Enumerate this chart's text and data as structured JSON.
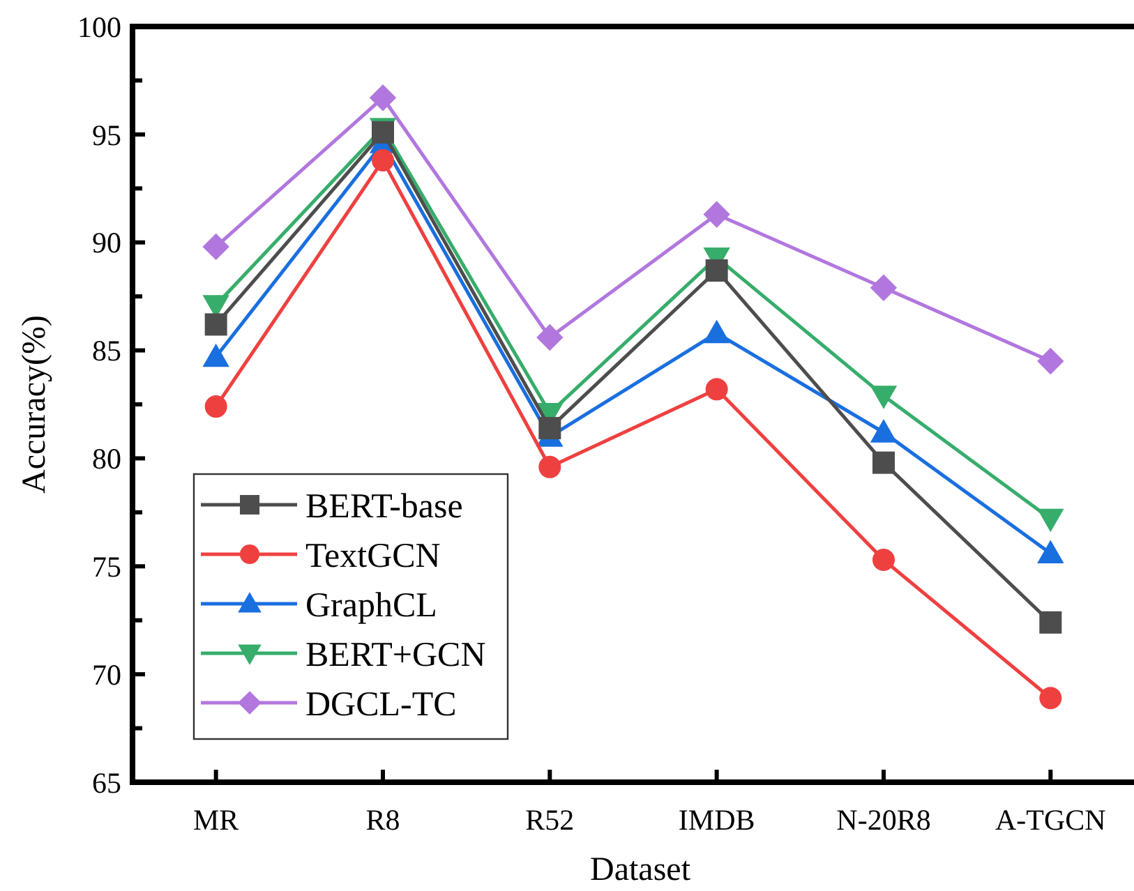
{
  "chart_data": {
    "type": "line",
    "xlabel": "Dataset",
    "ylabel": "Accuracy(%)",
    "categories": [
      "MR",
      "R8",
      "R52",
      "IMDB",
      "N-20R8",
      "A-TGCN"
    ],
    "ylim": [
      65,
      100
    ],
    "yticks": [
      65,
      {
        "value": 67.5,
        "label": null
      },
      70,
      {
        "value": 72.5,
        "label": null
      },
      75,
      {
        "value": 77.5,
        "label": null
      },
      80,
      {
        "value": 82.5,
        "label": null
      },
      85,
      {
        "value": 87.5,
        "label": null
      },
      90,
      {
        "value": 92.5,
        "label": null
      },
      95,
      {
        "value": 97.5,
        "label": null
      },
      100
    ],
    "grid": false,
    "legend": "bottom left",
    "line_style": "solid",
    "series": [
      {
        "name": "BERT-base",
        "color": "#4d4d4d",
        "marker": "square",
        "values": [
          86.2,
          95.1,
          81.4,
          88.7,
          79.8,
          72.4
        ]
      },
      {
        "name": "TextGCN",
        "color": "#ef4040",
        "marker": "circle",
        "values": [
          82.4,
          93.8,
          79.6,
          83.2,
          75.3,
          68.9
        ]
      },
      {
        "name": "GraphCL",
        "color": "#1a6fdf",
        "marker": "triangle",
        "values": [
          84.7,
          94.6,
          81.0,
          85.8,
          81.2,
          75.6
        ]
      },
      {
        "name": "BERT+GCN",
        "color": "#37ad6b",
        "marker": "triangle-down",
        "values": [
          87.1,
          95.3,
          82.1,
          89.3,
          82.9,
          77.2
        ]
      },
      {
        "name": "DGCL-TC",
        "color": "#b177de",
        "marker": "diamond",
        "values": [
          89.8,
          96.7,
          85.6,
          91.3,
          87.9,
          84.5
        ]
      }
    ]
  }
}
